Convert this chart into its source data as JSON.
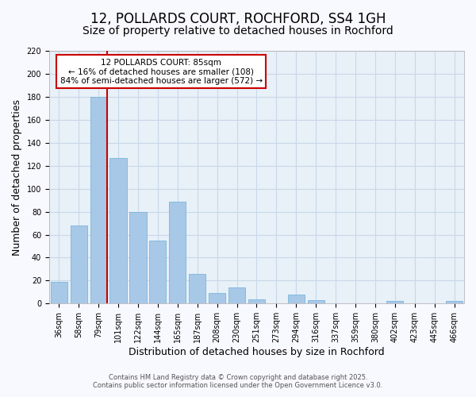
{
  "title": "12, POLLARDS COURT, ROCHFORD, SS4 1GH",
  "subtitle": "Size of property relative to detached houses in Rochford",
  "xlabel": "Distribution of detached houses by size in Rochford",
  "ylabel": "Number of detached properties",
  "categories": [
    "36sqm",
    "58sqm",
    "79sqm",
    "101sqm",
    "122sqm",
    "144sqm",
    "165sqm",
    "187sqm",
    "208sqm",
    "230sqm",
    "251sqm",
    "273sqm",
    "294sqm",
    "316sqm",
    "337sqm",
    "359sqm",
    "380sqm",
    "402sqm",
    "423sqm",
    "445sqm",
    "466sqm"
  ],
  "values": [
    19,
    68,
    180,
    127,
    80,
    55,
    89,
    26,
    9,
    14,
    4,
    0,
    8,
    3,
    0,
    0,
    0,
    2,
    0,
    0,
    2
  ],
  "bar_color": "#a8c8e8",
  "bar_edge_color": "#6aafd6",
  "grid_color": "#c8d8e8",
  "bg_color": "#e8f0f8",
  "fig_bg_color": "#f8f8ff",
  "vline_color": "#cc0000",
  "vline_x_index": 2,
  "annotation_title": "12 POLLARDS COURT: 85sqm",
  "annotation_line1": "← 16% of detached houses are smaller (108)",
  "annotation_line2": "84% of semi-detached houses are larger (572) →",
  "annotation_box_color": "#ffffff",
  "annotation_box_edge": "#cc0000",
  "ylim": [
    0,
    220
  ],
  "yticks": [
    0,
    20,
    40,
    60,
    80,
    100,
    120,
    140,
    160,
    180,
    200,
    220
  ],
  "footer1": "Contains HM Land Registry data © Crown copyright and database right 2025.",
  "footer2": "Contains public sector information licensed under the Open Government Licence v3.0.",
  "title_fontsize": 12,
  "subtitle_fontsize": 10,
  "tick_fontsize": 7,
  "ylabel_fontsize": 9,
  "xlabel_fontsize": 9,
  "annotation_fontsize": 7.5,
  "footer_fontsize": 6
}
